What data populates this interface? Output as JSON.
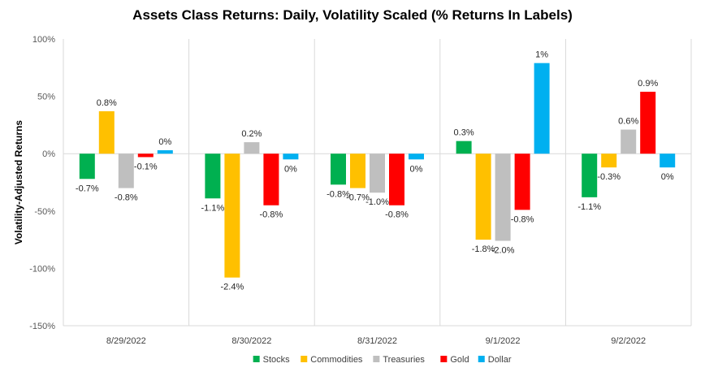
{
  "chart_data": {
    "type": "bar",
    "title": "Assets Class Returns: Daily, Volatility Scaled (% Returns In Labels)",
    "ylabel": "Volatility-Adjusted Returns",
    "xlabel": "",
    "ylim": [
      -150,
      100
    ],
    "yticks": [
      -150,
      -100,
      -50,
      0,
      50,
      100
    ],
    "ytick_suffix": "%",
    "grid": "vertical category separators",
    "legend": "bottom",
    "categories": [
      "8/29/2022",
      "8/30/2022",
      "8/31/2022",
      "9/1/2022",
      "9/2/2022"
    ],
    "series": [
      {
        "name": "Stocks",
        "color": "#00b050",
        "values": [
          -22,
          -39,
          -27,
          11,
          -38
        ],
        "labels": [
          "-0.7%",
          "-1.1%",
          "-0.8%",
          "0.3%",
          "-1.1%"
        ]
      },
      {
        "name": "Commodities",
        "color": "#ffc000",
        "values": [
          37,
          -108,
          -30,
          -75,
          -12
        ],
        "labels": [
          "0.8%",
          "-2.4%",
          "-0.7%",
          "-1.8%",
          "-0.3%"
        ]
      },
      {
        "name": "Treasuries",
        "color": "#bfbfbf",
        "values": [
          -30,
          10,
          -34,
          -76,
          21
        ],
        "labels": [
          "-0.8%",
          "0.2%",
          "-1.0%",
          "-2.0%",
          "0.6%"
        ]
      },
      {
        "name": "Gold",
        "color": "#ff0000",
        "values": [
          -3,
          -45,
          -45,
          -49,
          54
        ],
        "labels": [
          "-0.1%",
          "-0.8%",
          "-0.8%",
          "-0.8%",
          "0.9%"
        ]
      },
      {
        "name": "Dollar",
        "color": "#00b0f0",
        "values": [
          3,
          -5,
          -5,
          79,
          -12
        ],
        "labels": [
          "0%",
          "0%",
          "0%",
          "1%",
          "0%"
        ]
      }
    ]
  }
}
